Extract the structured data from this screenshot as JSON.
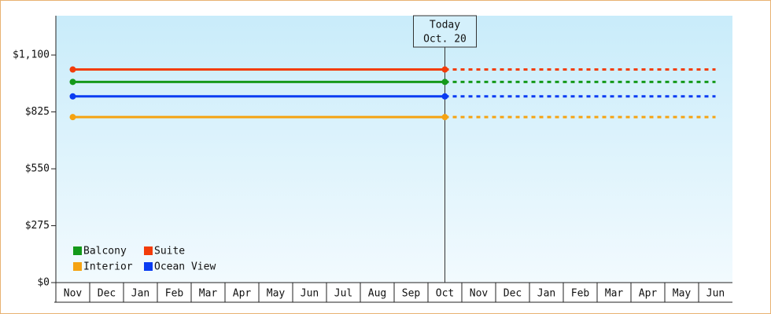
{
  "chart_data": {
    "type": "line",
    "categories": [
      "Nov",
      "Dec",
      "Jan",
      "Feb",
      "Mar",
      "Apr",
      "May",
      "Jun",
      "Jul",
      "Aug",
      "Sep",
      "Oct",
      "Nov",
      "Dec",
      "Jan",
      "Feb",
      "Mar",
      "Apr",
      "May",
      "Jun"
    ],
    "series": [
      {
        "name": "Balcony",
        "color": "#14991a",
        "values": [
          970,
          970,
          970,
          970,
          970,
          970,
          970,
          970,
          970,
          970,
          970,
          970,
          970,
          970,
          970,
          970,
          970,
          970,
          970,
          970
        ]
      },
      {
        "name": "Suite",
        "color": "#f23c0a",
        "values": [
          1030,
          1030,
          1030,
          1030,
          1030,
          1030,
          1030,
          1030,
          1030,
          1030,
          1030,
          1030,
          1030,
          1030,
          1030,
          1030,
          1030,
          1030,
          1030,
          1030
        ]
      },
      {
        "name": "Interior",
        "color": "#f5a312",
        "values": [
          800,
          800,
          800,
          800,
          800,
          800,
          800,
          800,
          800,
          800,
          800,
          800,
          800,
          800,
          800,
          800,
          800,
          800,
          800,
          800
        ]
      },
      {
        "name": "Ocean View",
        "color": "#0a3cf2",
        "values": [
          900,
          900,
          900,
          900,
          900,
          900,
          900,
          900,
          900,
          900,
          900,
          900,
          900,
          900,
          900,
          900,
          900,
          900,
          900,
          900
        ]
      }
    ],
    "today": {
      "label": "Today",
      "date": "Oct. 20",
      "category_index": 11
    },
    "ylim": [
      0,
      1290
    ],
    "yticks": [
      {
        "value": 0,
        "label": "$0"
      },
      {
        "value": 275,
        "label": "$275"
      },
      {
        "value": 550,
        "label": "$550"
      },
      {
        "value": 825,
        "label": "$825"
      },
      {
        "value": 1100,
        "label": "$1,100"
      }
    ],
    "legend": "bottom-left"
  }
}
